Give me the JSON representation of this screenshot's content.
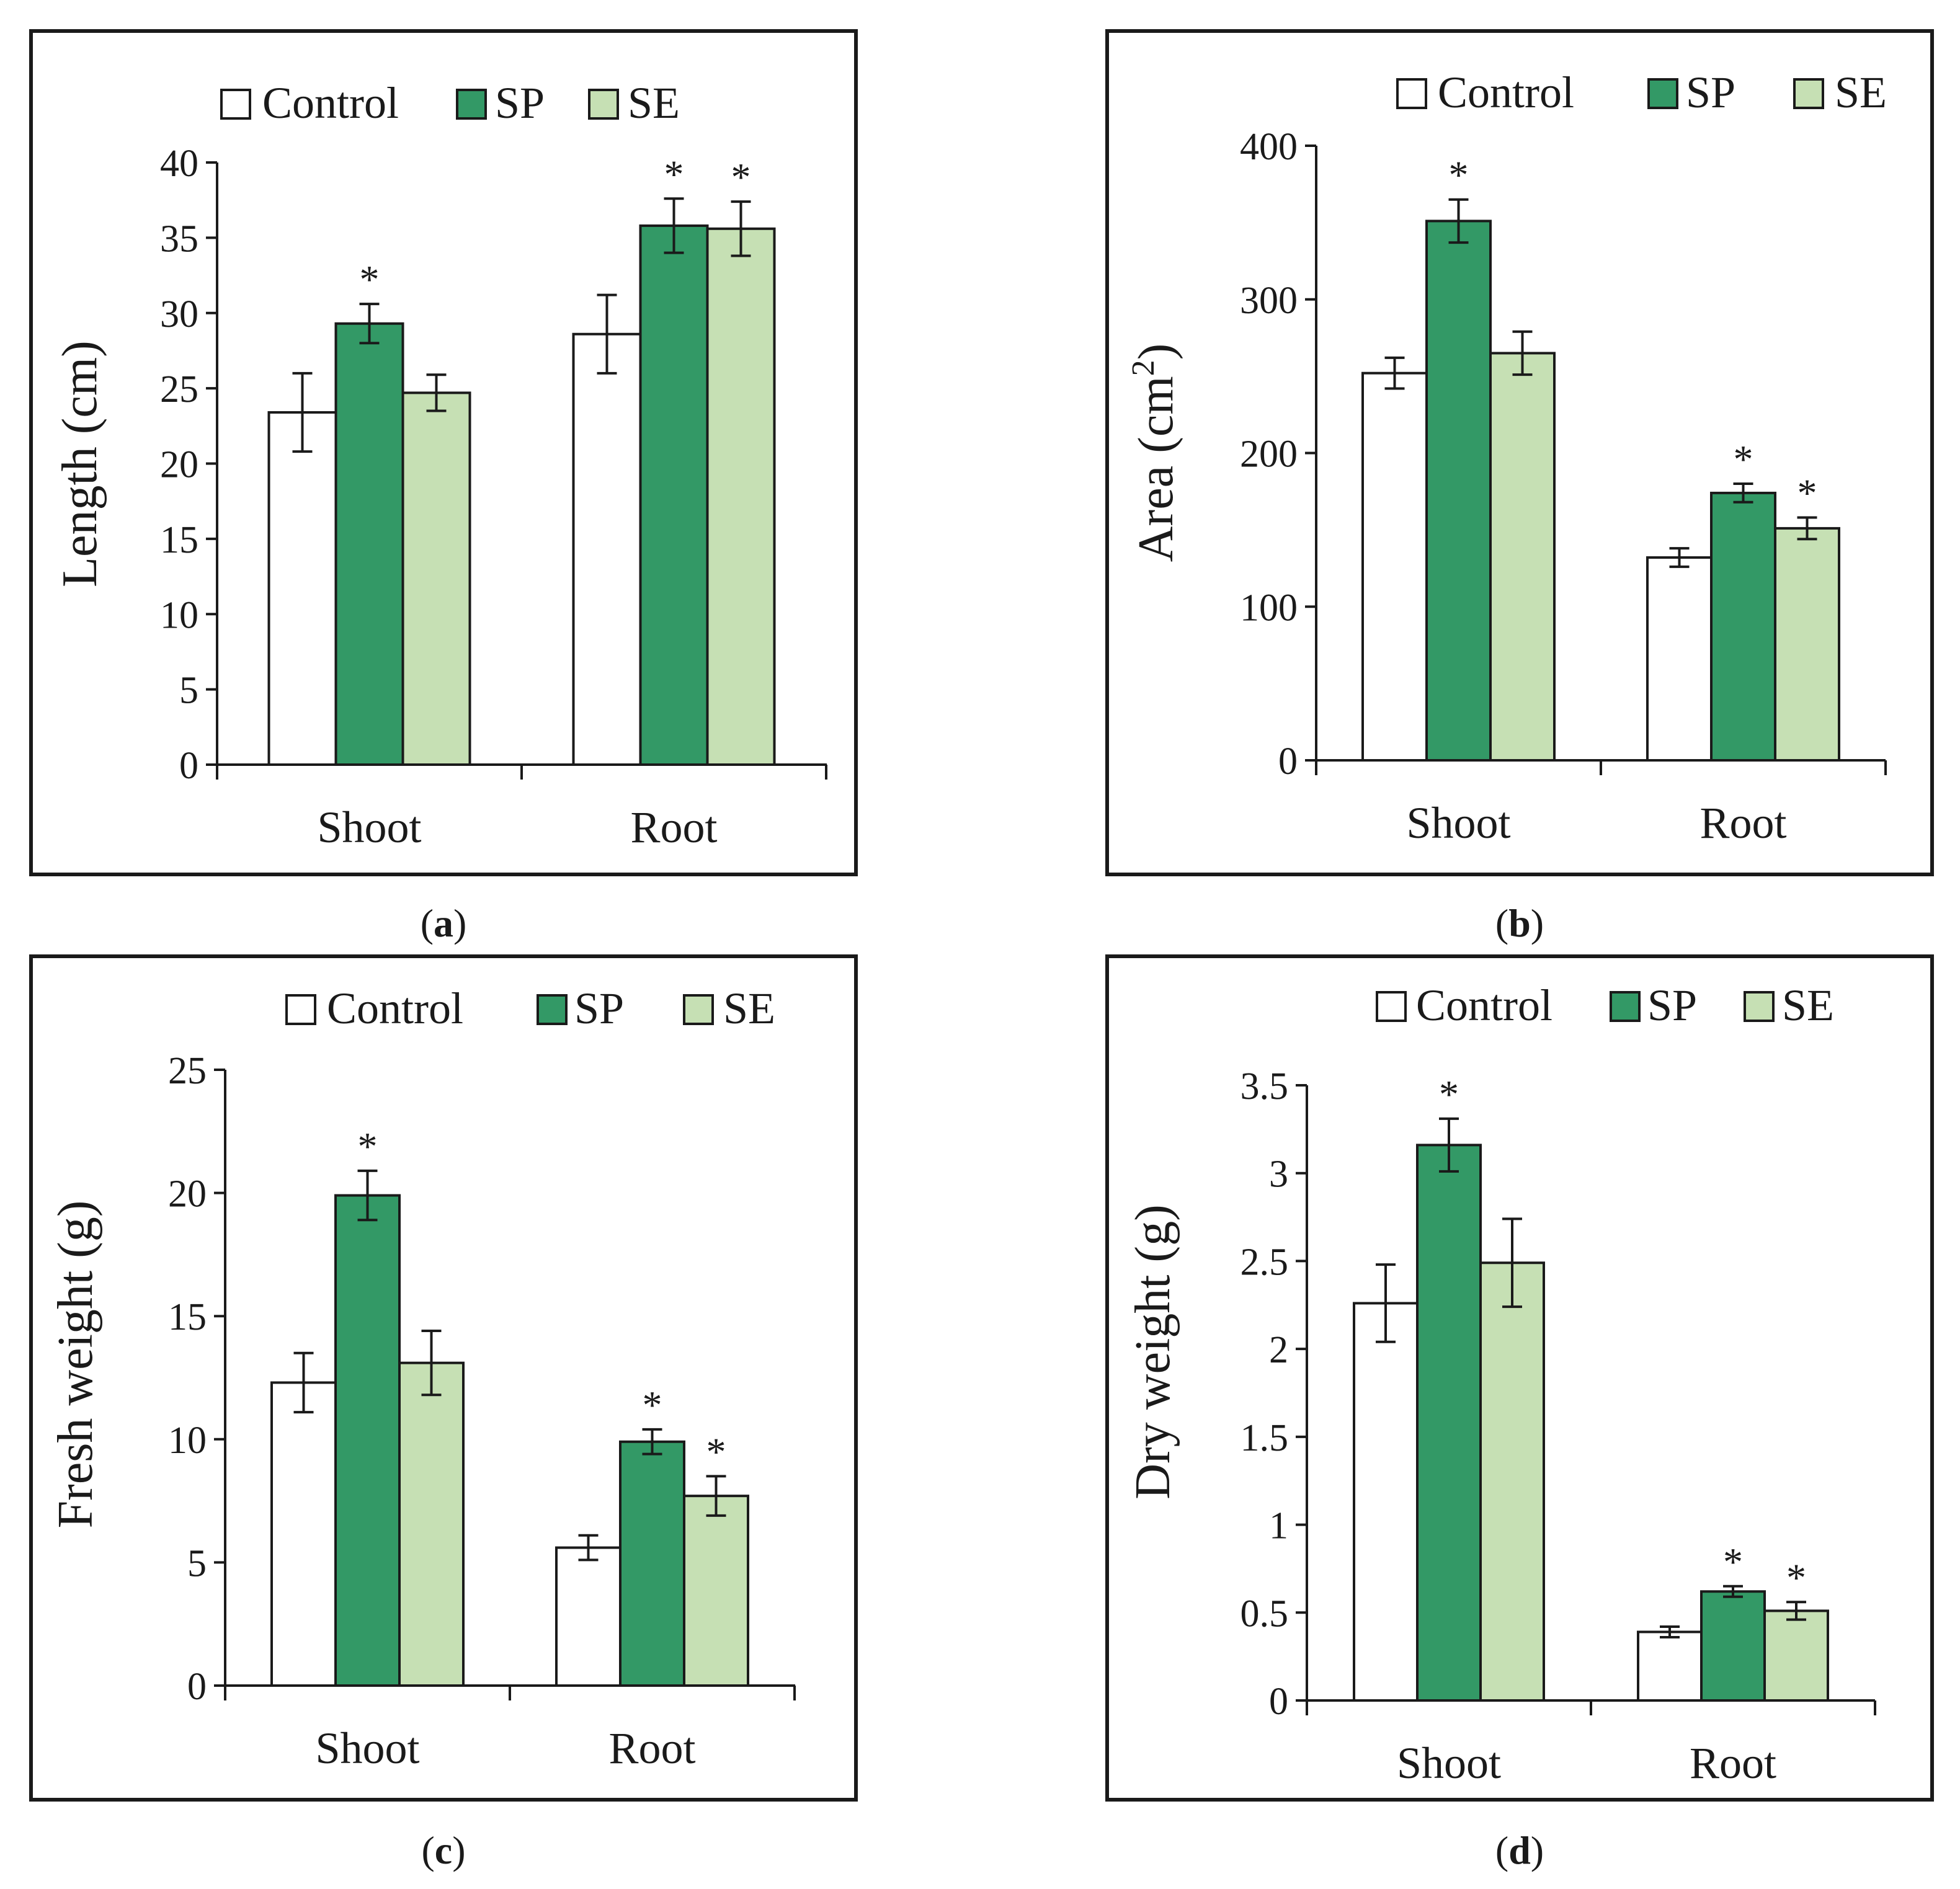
{
  "legend": {
    "control_label": "Control",
    "sp_label": "SP",
    "se_label": "SE"
  },
  "colors": {
    "control": "#ffffff",
    "sp": "#339966",
    "se": "#c6e0b4",
    "stroke": "#1a1a1a"
  },
  "chart_data": [
    {
      "id": "a",
      "type": "bar",
      "caption_letter": "a",
      "ylabel": "Length (cm)",
      "ylim": [
        0,
        40
      ],
      "yticks": [
        "0",
        "5",
        "10",
        "15",
        "20",
        "25",
        "30",
        "35",
        "40"
      ],
      "categories": [
        "Shoot",
        "Root"
      ],
      "series": [
        {
          "name": "Control",
          "values": [
            23.4,
            28.6
          ],
          "errors": [
            2.6,
            2.6
          ],
          "significant": [
            false,
            false
          ]
        },
        {
          "name": "SP",
          "values": [
            29.3,
            35.8
          ],
          "errors": [
            1.3,
            1.8
          ],
          "significant": [
            true,
            true
          ]
        },
        {
          "name": "SE",
          "values": [
            24.7,
            35.6
          ],
          "errors": [
            1.2,
            1.8
          ],
          "significant": [
            false,
            true
          ]
        }
      ],
      "significance_marker": "*"
    },
    {
      "id": "b",
      "type": "bar",
      "caption_letter": "b",
      "ylabel": "Area (cm",
      "ylabel_sup": "2",
      "ylabel_end": ")",
      "ylim": [
        0,
        400
      ],
      "yticks": [
        "0",
        "100",
        "200",
        "300",
        "400"
      ],
      "categories": [
        "Shoot",
        "Root"
      ],
      "series": [
        {
          "name": "Control",
          "values": [
            252,
            132
          ],
          "errors": [
            10,
            6
          ],
          "significant": [
            false,
            false
          ]
        },
        {
          "name": "SP",
          "values": [
            351,
            174
          ],
          "errors": [
            14,
            6
          ],
          "significant": [
            true,
            true
          ]
        },
        {
          "name": "SE",
          "values": [
            265,
            151
          ],
          "errors": [
            14,
            7
          ],
          "significant": [
            false,
            true
          ]
        }
      ],
      "significance_marker": "*"
    },
    {
      "id": "c",
      "type": "bar",
      "caption_letter": "c",
      "ylabel": "Fresh weight (g)",
      "ylim": [
        0,
        25
      ],
      "yticks": [
        "0",
        "5",
        "10",
        "15",
        "20",
        "25"
      ],
      "categories": [
        "Shoot",
        "Root"
      ],
      "series": [
        {
          "name": "Control",
          "values": [
            12.3,
            5.6
          ],
          "errors": [
            1.2,
            0.5
          ],
          "significant": [
            false,
            false
          ]
        },
        {
          "name": "SP",
          "values": [
            19.9,
            9.9
          ],
          "errors": [
            1.0,
            0.5
          ],
          "significant": [
            true,
            true
          ]
        },
        {
          "name": "SE",
          "values": [
            13.1,
            7.7
          ],
          "errors": [
            1.3,
            0.8
          ],
          "significant": [
            false,
            true
          ]
        }
      ],
      "significance_marker": "*"
    },
    {
      "id": "d",
      "type": "bar",
      "caption_letter": "d",
      "ylabel": "Dry weight (g)",
      "ylim": [
        0,
        3.5
      ],
      "yticks": [
        "0",
        "0.5",
        "1",
        "1.5",
        "2",
        "2.5",
        "3",
        "3.5"
      ],
      "categories": [
        "Shoot",
        "Root"
      ],
      "series": [
        {
          "name": "Control",
          "values": [
            2.26,
            0.39
          ],
          "errors": [
            0.22,
            0.03
          ],
          "significant": [
            false,
            false
          ]
        },
        {
          "name": "SP",
          "values": [
            3.16,
            0.62
          ],
          "errors": [
            0.15,
            0.03
          ],
          "significant": [
            true,
            true
          ]
        },
        {
          "name": "SE",
          "values": [
            2.49,
            0.51
          ],
          "errors": [
            0.25,
            0.05
          ],
          "significant": [
            false,
            true
          ]
        }
      ],
      "significance_marker": "*"
    }
  ]
}
